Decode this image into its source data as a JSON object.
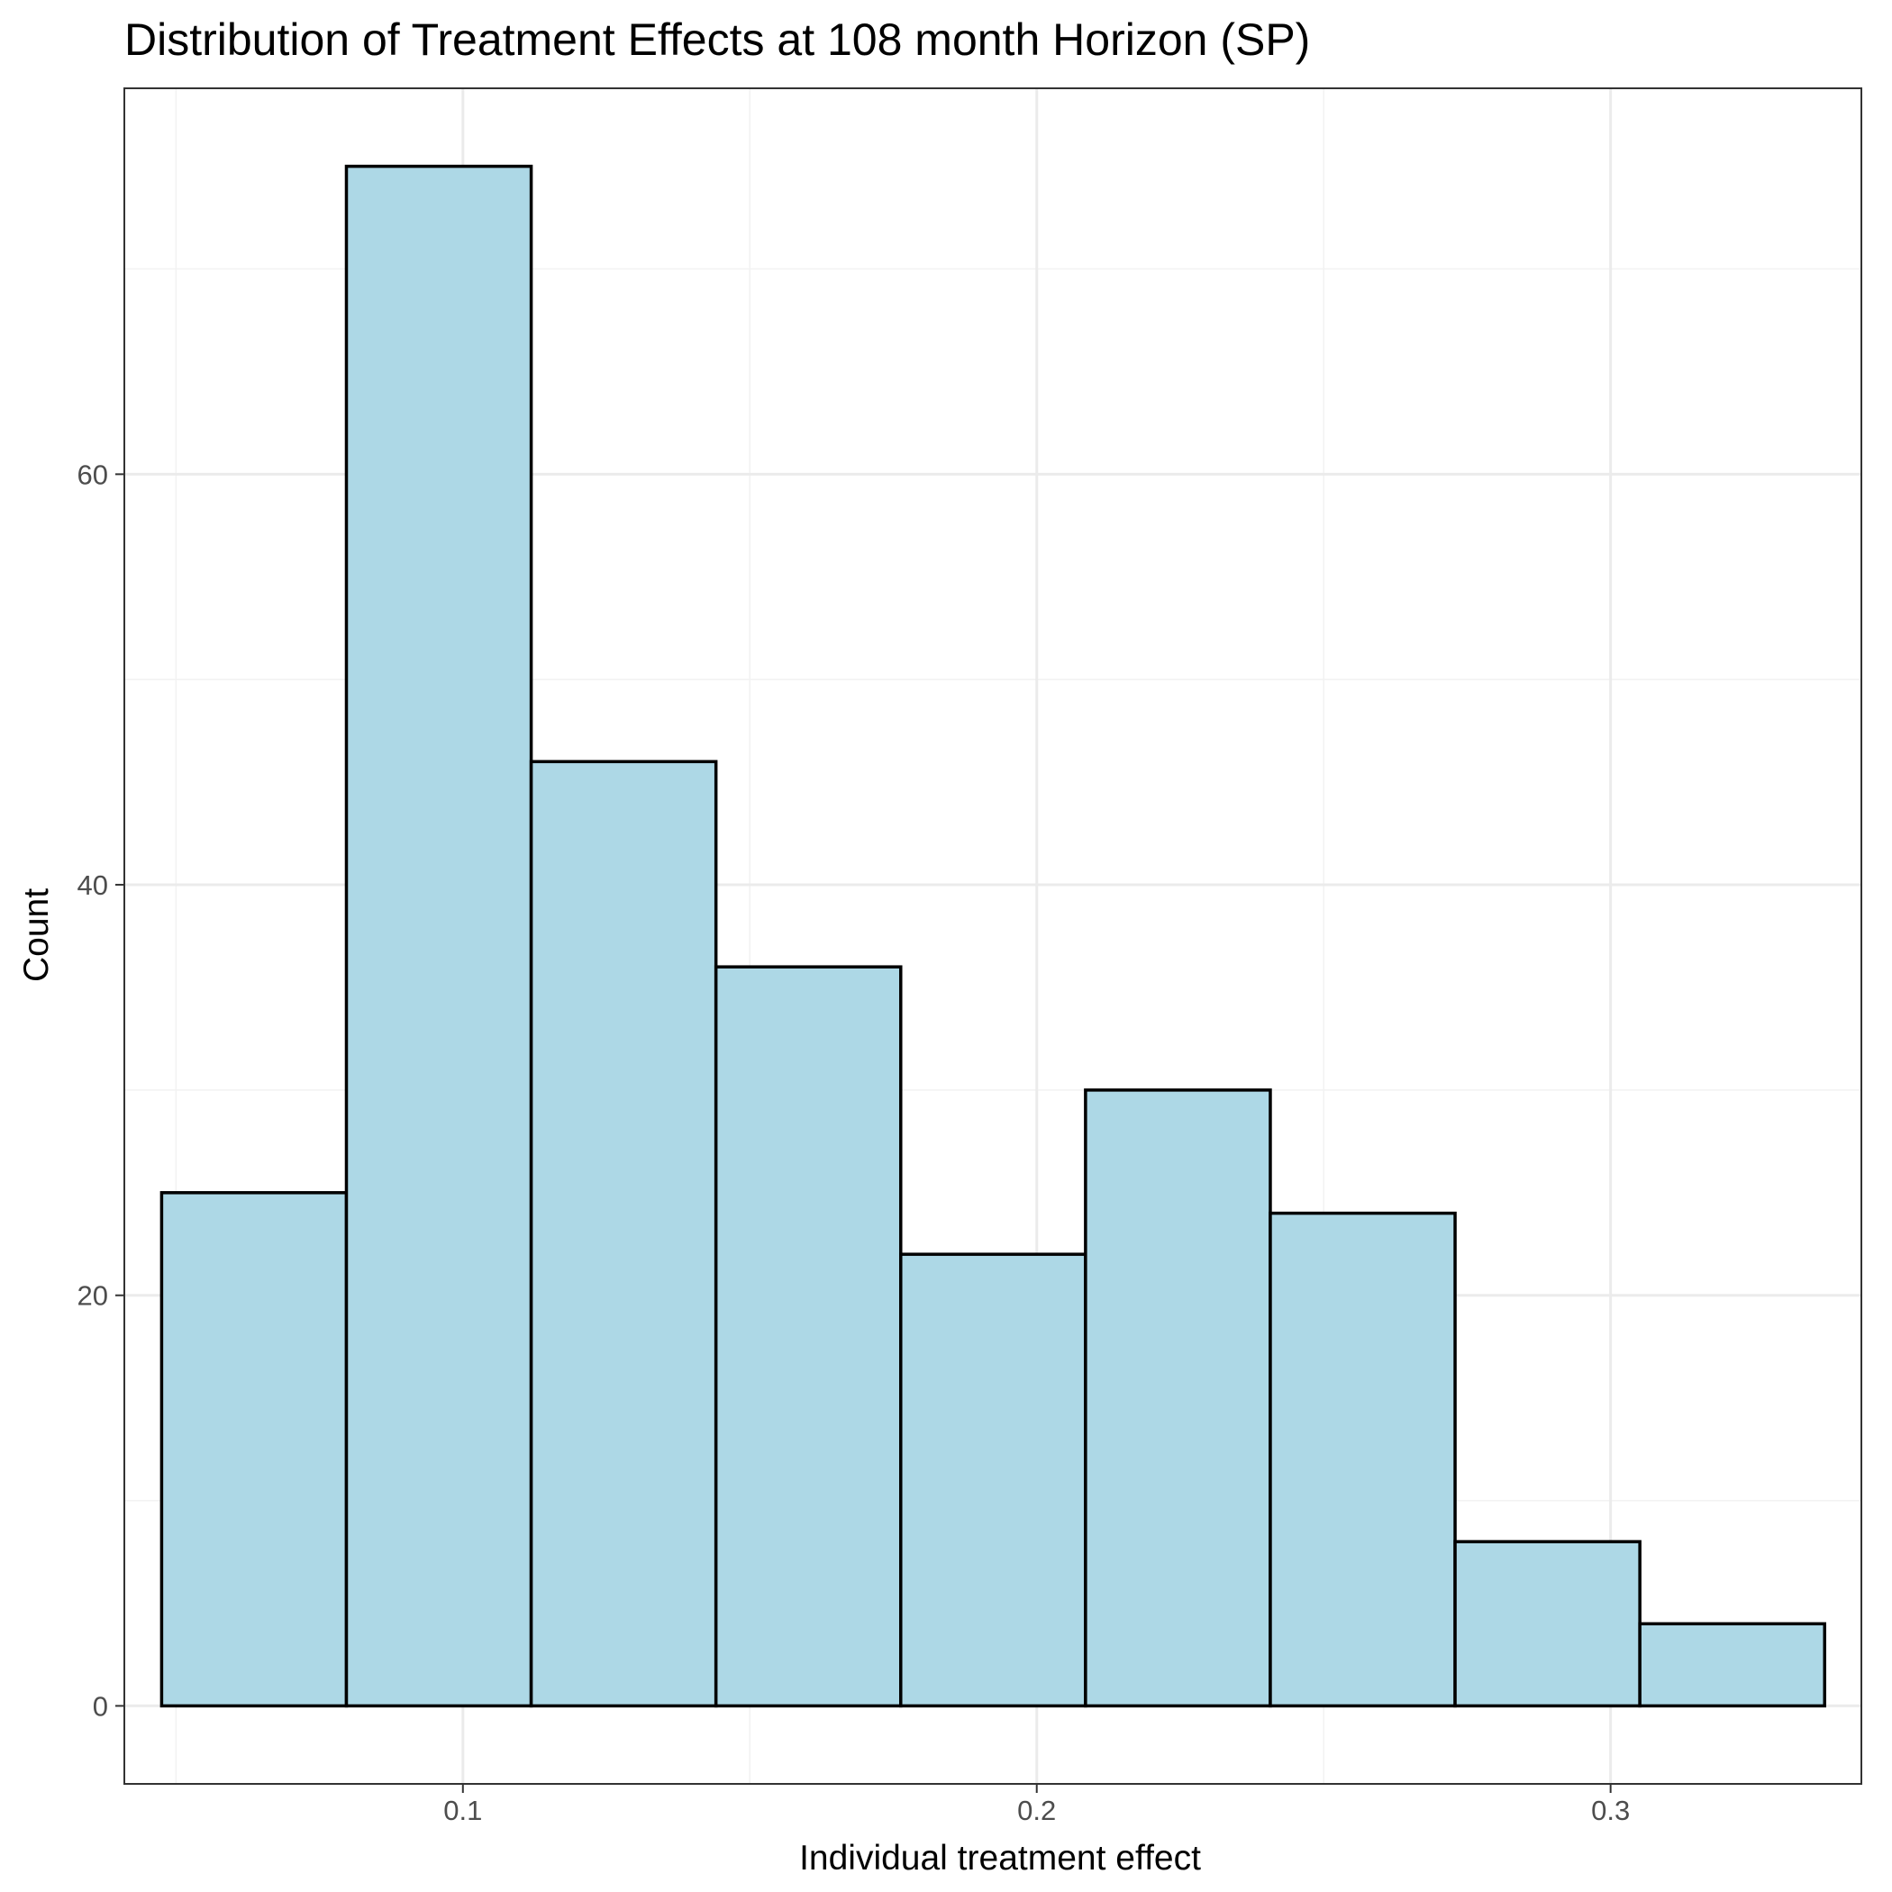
{
  "chart_data": {
    "type": "bar",
    "title": "Distribution of Treatment Effects at 108 month Horizon (SP)",
    "xlabel": "Individual treatment effect",
    "ylabel": "Count",
    "bins": [
      {
        "x0": 0.0475,
        "x1": 0.0797,
        "count": 25
      },
      {
        "x0": 0.0797,
        "x1": 0.1119,
        "count": 75
      },
      {
        "x0": 0.1119,
        "x1": 0.1441,
        "count": 46
      },
      {
        "x0": 0.1441,
        "x1": 0.1763,
        "count": 36
      },
      {
        "x0": 0.1763,
        "x1": 0.2085,
        "count": 22
      },
      {
        "x0": 0.2085,
        "x1": 0.2407,
        "count": 30
      },
      {
        "x0": 0.2407,
        "x1": 0.2729,
        "count": 24
      },
      {
        "x0": 0.2729,
        "x1": 0.3051,
        "count": 8
      },
      {
        "x0": 0.3051,
        "x1": 0.3373,
        "count": 4
      }
    ],
    "xlim": [
      0.041,
      0.3437
    ],
    "ylim": [
      -3.8,
      78.8
    ],
    "x_ticks": [
      0.1,
      0.2,
      0.3
    ],
    "x_tick_labels": [
      "0.1",
      "0.2",
      "0.3"
    ],
    "x_minor_ticks": [
      0.05,
      0.15,
      0.25
    ],
    "y_ticks": [
      0,
      20,
      40,
      60
    ],
    "y_tick_labels": [
      "0",
      "20",
      "40",
      "60"
    ],
    "y_minor_ticks": [
      10,
      30,
      50,
      70
    ],
    "grid": true,
    "legend": "none",
    "colors": {
      "bar_fill": "#ADD8E6",
      "bar_stroke": "#000000",
      "grid_major": "#EBEBEB",
      "grid_minor": "#F2F2F2",
      "panel_border": "#333333",
      "tick_text": "#4D4D4D"
    }
  }
}
